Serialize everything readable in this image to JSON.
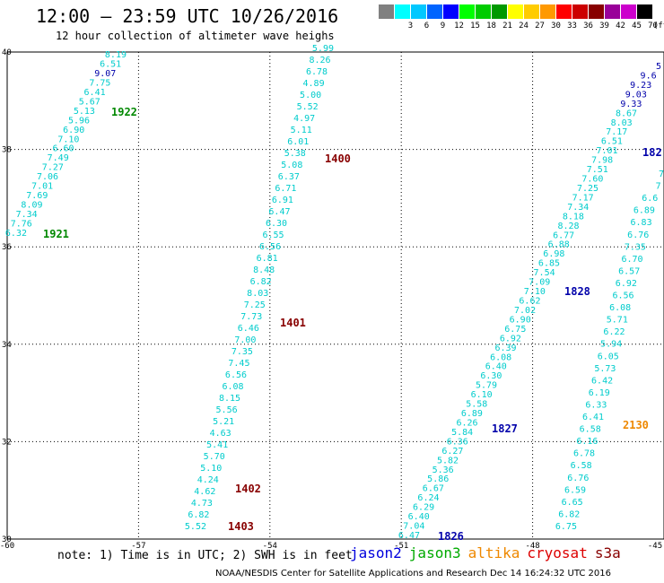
{
  "header": {
    "title": "12:00 — 23:59 UTC 10/26/2016",
    "subtitle": "12 hour collection of altimeter wave heighs"
  },
  "legend": {
    "unit": "(ft)",
    "swatches": [
      {
        "label": "",
        "color": "#808080"
      },
      {
        "label": "3",
        "color": "#00ffff"
      },
      {
        "label": "6",
        "color": "#00c8ff"
      },
      {
        "label": "9",
        "color": "#0064ff"
      },
      {
        "label": "12",
        "color": "#0000ff"
      },
      {
        "label": "15",
        "color": "#00ff00"
      },
      {
        "label": "18",
        "color": "#00cc00"
      },
      {
        "label": "21",
        "color": "#009900"
      },
      {
        "label": "24",
        "color": "#ffff00"
      },
      {
        "label": "27",
        "color": "#ffcc00"
      },
      {
        "label": "30",
        "color": "#ff9900"
      },
      {
        "label": "33",
        "color": "#ff0000"
      },
      {
        "label": "36",
        "color": "#cc0000"
      },
      {
        "label": "39",
        "color": "#880000"
      },
      {
        "label": "42",
        "color": "#990099"
      },
      {
        "label": "45",
        "color": "#cc00cc"
      },
      {
        "label": "70",
        "color": "#000000"
      }
    ]
  },
  "map": {
    "lon_range": [
      -60,
      -45
    ],
    "lat_range": [
      30,
      40
    ],
    "x_ticks": [
      "-60",
      "-57",
      "-54",
      "-51",
      "-48",
      "-45"
    ],
    "y_ticks": [
      "30",
      "32",
      "34",
      "36",
      "38",
      "40"
    ]
  },
  "colors": {
    "cyan": "#00cccc",
    "blue": "#0000aa",
    "green": "#008800",
    "darkred": "#880000",
    "orange": "#ee8800",
    "red": "#dd0000"
  },
  "tracks": [
    {
      "name": "track-1921-1922",
      "points": [
        {
          "t": "8.19",
          "c": "cyan"
        },
        {
          "t": "6.51",
          "c": "cyan"
        },
        {
          "t": "9.07",
          "c": "blue"
        },
        {
          "t": "7.75",
          "c": "cyan"
        },
        {
          "t": "6.41",
          "c": "cyan"
        },
        {
          "t": "5.67",
          "c": "cyan"
        },
        {
          "t": "5.13",
          "c": "cyan"
        },
        {
          "t": "5.96",
          "c": "cyan"
        },
        {
          "t": "6.90",
          "c": "cyan"
        },
        {
          "t": "7.10",
          "c": "cyan"
        },
        {
          "t": "6.60",
          "c": "cyan"
        },
        {
          "t": "7.49",
          "c": "cyan"
        },
        {
          "t": "7.27",
          "c": "cyan"
        },
        {
          "t": "7.06",
          "c": "cyan"
        },
        {
          "t": "7.01",
          "c": "cyan"
        },
        {
          "t": "7.69",
          "c": "cyan"
        },
        {
          "t": "8.09",
          "c": "cyan"
        },
        {
          "t": "7.34",
          "c": "cyan"
        },
        {
          "t": "7.76",
          "c": "cyan"
        },
        {
          "t": "6.32",
          "c": "cyan"
        }
      ]
    },
    {
      "name": "track-1400-1403",
      "points": [
        {
          "t": "5.99",
          "c": "cyan"
        },
        {
          "t": "8.26",
          "c": "cyan"
        },
        {
          "t": "6.78",
          "c": "cyan"
        },
        {
          "t": "4.89",
          "c": "cyan"
        },
        {
          "t": "5.00",
          "c": "cyan"
        },
        {
          "t": "5.52",
          "c": "cyan"
        },
        {
          "t": "4.97",
          "c": "cyan"
        },
        {
          "t": "5.11",
          "c": "cyan"
        },
        {
          "t": "6.01",
          "c": "cyan"
        },
        {
          "t": "5.38",
          "c": "cyan"
        },
        {
          "t": "5.08",
          "c": "cyan"
        },
        {
          "t": "6.37",
          "c": "cyan"
        },
        {
          "t": "6.71",
          "c": "cyan"
        },
        {
          "t": "6.91",
          "c": "cyan"
        },
        {
          "t": "6.47",
          "c": "cyan"
        },
        {
          "t": "6.30",
          "c": "cyan"
        },
        {
          "t": "6.55",
          "c": "cyan"
        },
        {
          "t": "6.56",
          "c": "cyan"
        },
        {
          "t": "6.81",
          "c": "cyan"
        },
        {
          "t": "8.48",
          "c": "cyan"
        },
        {
          "t": "6.82",
          "c": "cyan"
        },
        {
          "t": "8.03",
          "c": "cyan"
        },
        {
          "t": "7.25",
          "c": "cyan"
        },
        {
          "t": "7.73",
          "c": "cyan"
        },
        {
          "t": "6.46",
          "c": "cyan"
        },
        {
          "t": "7.00",
          "c": "cyan"
        },
        {
          "t": "7.35",
          "c": "cyan"
        },
        {
          "t": "7.45",
          "c": "cyan"
        },
        {
          "t": "6.56",
          "c": "cyan"
        },
        {
          "t": "6.08",
          "c": "cyan"
        },
        {
          "t": "8.15",
          "c": "cyan"
        },
        {
          "t": "5.56",
          "c": "cyan"
        },
        {
          "t": "5.21",
          "c": "cyan"
        },
        {
          "t": "4.63",
          "c": "cyan"
        },
        {
          "t": "5.41",
          "c": "cyan"
        },
        {
          "t": "5.70",
          "c": "cyan"
        },
        {
          "t": "5.10",
          "c": "cyan"
        },
        {
          "t": "4.24",
          "c": "cyan"
        },
        {
          "t": "4.62",
          "c": "cyan"
        },
        {
          "t": "4.73",
          "c": "cyan"
        },
        {
          "t": "6.82",
          "c": "cyan"
        },
        {
          "t": "5.52",
          "c": "cyan"
        }
      ]
    },
    {
      "name": "track-1826-1828",
      "points": [
        {
          "t": "5",
          "c": "blue"
        },
        {
          "t": "9.6",
          "c": "blue"
        },
        {
          "t": "9.23",
          "c": "blue"
        },
        {
          "t": "9.03",
          "c": "blue"
        },
        {
          "t": "9.33",
          "c": "blue"
        },
        {
          "t": "8.67",
          "c": "cyan"
        },
        {
          "t": "8.03",
          "c": "cyan"
        },
        {
          "t": "7.17",
          "c": "cyan"
        },
        {
          "t": "6.51",
          "c": "cyan"
        },
        {
          "t": "7.01",
          "c": "cyan"
        },
        {
          "t": "7.98",
          "c": "cyan"
        },
        {
          "t": "7.51",
          "c": "cyan"
        },
        {
          "t": "7.60",
          "c": "cyan"
        },
        {
          "t": "7.25",
          "c": "cyan"
        },
        {
          "t": "7.17",
          "c": "cyan"
        },
        {
          "t": "7.34",
          "c": "cyan"
        },
        {
          "t": "8.18",
          "c": "cyan"
        },
        {
          "t": "8.28",
          "c": "cyan"
        },
        {
          "t": "6.77",
          "c": "cyan"
        },
        {
          "t": "6.88",
          "c": "cyan"
        },
        {
          "t": "6.98",
          "c": "cyan"
        },
        {
          "t": "6.85",
          "c": "cyan"
        },
        {
          "t": "7.54",
          "c": "cyan"
        },
        {
          "t": "7.09",
          "c": "cyan"
        },
        {
          "t": "7.10",
          "c": "cyan"
        },
        {
          "t": "6.62",
          "c": "cyan"
        },
        {
          "t": "7.02",
          "c": "cyan"
        },
        {
          "t": "6.90",
          "c": "cyan"
        },
        {
          "t": "6.75",
          "c": "cyan"
        },
        {
          "t": "6.92",
          "c": "cyan"
        },
        {
          "t": "6.39",
          "c": "cyan"
        },
        {
          "t": "6.08",
          "c": "cyan"
        },
        {
          "t": "6.40",
          "c": "cyan"
        },
        {
          "t": "6.30",
          "c": "cyan"
        },
        {
          "t": "5.79",
          "c": "cyan"
        },
        {
          "t": "6.10",
          "c": "cyan"
        },
        {
          "t": "5.58",
          "c": "cyan"
        },
        {
          "t": "6.89",
          "c": "cyan"
        },
        {
          "t": "6.26",
          "c": "cyan"
        },
        {
          "t": "5.84",
          "c": "cyan"
        },
        {
          "t": "6.36",
          "c": "cyan"
        },
        {
          "t": "6.27",
          "c": "cyan"
        },
        {
          "t": "5.82",
          "c": "cyan"
        },
        {
          "t": "5.36",
          "c": "cyan"
        },
        {
          "t": "5.86",
          "c": "cyan"
        },
        {
          "t": "6.67",
          "c": "cyan"
        },
        {
          "t": "6.24",
          "c": "cyan"
        },
        {
          "t": "6.29",
          "c": "cyan"
        },
        {
          "t": "6.40",
          "c": "cyan"
        },
        {
          "t": "7.04",
          "c": "cyan"
        },
        {
          "t": "6.47",
          "c": "cyan"
        }
      ]
    },
    {
      "name": "track-2130",
      "points": [
        {
          "t": "7",
          "c": "cyan"
        },
        {
          "t": "7",
          "c": "cyan"
        },
        {
          "t": "6.6",
          "c": "cyan"
        },
        {
          "t": "6.89",
          "c": "cyan"
        },
        {
          "t": "6.83",
          "c": "cyan"
        },
        {
          "t": "6.76",
          "c": "cyan"
        },
        {
          "t": "7.35",
          "c": "cyan"
        },
        {
          "t": "6.70",
          "c": "cyan"
        },
        {
          "t": "6.57",
          "c": "cyan"
        },
        {
          "t": "6.92",
          "c": "cyan"
        },
        {
          "t": "6.56",
          "c": "cyan"
        },
        {
          "t": "6.08",
          "c": "cyan"
        },
        {
          "t": "5.71",
          "c": "cyan"
        },
        {
          "t": "6.22",
          "c": "cyan"
        },
        {
          "t": "5.94",
          "c": "cyan"
        },
        {
          "t": "6.05",
          "c": "cyan"
        },
        {
          "t": "5.73",
          "c": "cyan"
        },
        {
          "t": "6.42",
          "c": "cyan"
        },
        {
          "t": "6.19",
          "c": "cyan"
        },
        {
          "t": "6.33",
          "c": "cyan"
        },
        {
          "t": "6.41",
          "c": "cyan"
        },
        {
          "t": "6.58",
          "c": "cyan"
        },
        {
          "t": "6.16",
          "c": "cyan"
        },
        {
          "t": "6.78",
          "c": "cyan"
        },
        {
          "t": "6.58",
          "c": "cyan"
        },
        {
          "t": "6.76",
          "c": "cyan"
        },
        {
          "t": "6.59",
          "c": "cyan"
        },
        {
          "t": "6.65",
          "c": "cyan"
        },
        {
          "t": "6.82",
          "c": "cyan"
        },
        {
          "t": "6.75",
          "c": "cyan"
        }
      ]
    }
  ],
  "time_labels": [
    {
      "t": "1922",
      "c": "green"
    },
    {
      "t": "1921",
      "c": "green"
    },
    {
      "t": "1400",
      "c": "darkred"
    },
    {
      "t": "1401",
      "c": "darkred"
    },
    {
      "t": "1402",
      "c": "darkred"
    },
    {
      "t": "1403",
      "c": "darkred"
    },
    {
      "t": "182",
      "c": "blue"
    },
    {
      "t": "1828",
      "c": "blue"
    },
    {
      "t": "1827",
      "c": "blue"
    },
    {
      "t": "1826",
      "c": "blue"
    },
    {
      "t": "2130",
      "c": "orange"
    }
  ],
  "note": "note: 1) Time is in UTC; 2) SWH is in feet",
  "satellites": [
    {
      "name": "jason2",
      "color": "#0000dd"
    },
    {
      "name": "jason3",
      "color": "#00aa00"
    },
    {
      "name": "altika",
      "color": "#ee8800"
    },
    {
      "name": "cryosat",
      "color": "#dd0000"
    },
    {
      "name": "s3a",
      "color": "#880000"
    }
  ],
  "footer": "NOAA/NESDIS Center for Satellite Applications and Research    Dec 14 16:24:32 UTC 2016"
}
